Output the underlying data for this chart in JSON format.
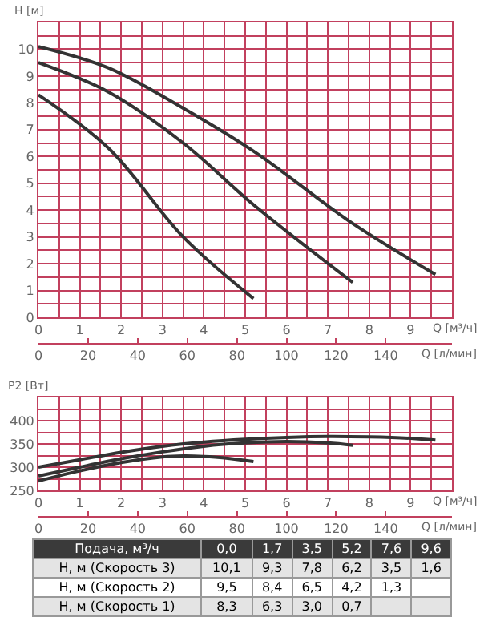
{
  "chart_data": [
    {
      "type": "line",
      "ylabel": "H [м]",
      "xlabel": "Q [м³/ч]",
      "x2label": "Q [л/мин]",
      "xlim": [
        0,
        10
      ],
      "xticks": [
        0,
        1,
        2,
        3,
        4,
        5,
        6,
        7,
        8,
        9
      ],
      "x2lim": [
        0,
        166.7
      ],
      "x2ticks": [
        0,
        20,
        40,
        60,
        80,
        100,
        120,
        140
      ],
      "ylim": [
        0,
        11
      ],
      "yticks": [
        0,
        1,
        2,
        3,
        4,
        5,
        6,
        7,
        8,
        9,
        10
      ],
      "grid": true,
      "line_style": "solid",
      "series": [
        {
          "color": "#333333",
          "x": [
            0,
            1.7,
            3.5,
            5.2,
            7.6,
            9.6
          ],
          "values": [
            10.1,
            9.3,
            7.8,
            6.2,
            3.5,
            1.6
          ]
        },
        {
          "color": "#333333",
          "x": [
            0,
            1.7,
            3.5,
            5.2,
            7.6
          ],
          "values": [
            9.5,
            8.4,
            6.5,
            4.2,
            1.3
          ]
        },
        {
          "color": "#333333",
          "x": [
            0,
            1.7,
            3.5,
            5.2
          ],
          "values": [
            8.3,
            6.3,
            3.0,
            0.7
          ]
        }
      ]
    },
    {
      "type": "line",
      "ylabel": "P2 [Вт]",
      "xlabel": "Q [м³/ч]",
      "x2label": "Q [л/мин]",
      "xlim": [
        0,
        10
      ],
      "xticks": [
        0,
        1,
        2,
        3,
        4,
        5,
        6,
        7,
        8,
        9
      ],
      "x2lim": [
        0,
        166.7
      ],
      "x2ticks": [
        0,
        20,
        40,
        60,
        80,
        100,
        120,
        140
      ],
      "ylim": [
        250,
        450
      ],
      "yticks": [
        250,
        300,
        350,
        400
      ],
      "grid": true,
      "line_style": "solid",
      "series": [
        {
          "color": "#333333",
          "x": [
            0,
            1,
            2,
            3,
            4,
            5,
            6,
            7,
            8,
            9,
            9.6
          ],
          "values": [
            300,
            316,
            332,
            345,
            354,
            360,
            364,
            366,
            365,
            362,
            358
          ]
        },
        {
          "color": "#333333",
          "x": [
            0,
            1,
            2,
            3,
            4,
            5,
            6,
            7,
            7.6
          ],
          "values": [
            281,
            300,
            318,
            333,
            345,
            352,
            355,
            352,
            347
          ]
        },
        {
          "color": "#333333",
          "x": [
            0,
            1,
            2,
            3,
            3.5,
            4,
            4.5,
            5.2
          ],
          "values": [
            270,
            292,
            310,
            322,
            324,
            323,
            320,
            312
          ]
        }
      ]
    },
    {
      "type": "other",
      "annotations": [
        "Подача, м³/ч"
      ],
      "categories": [
        "0,0",
        "1,7",
        "3,5",
        "5,2",
        "7,6",
        "9,6"
      ],
      "series": [
        {
          "name": "H, м (Скорость 3)",
          "values": [
            10.1,
            9.3,
            7.8,
            6.2,
            3.5,
            1.6
          ],
          "value_labels": [
            "10,1",
            "9,3",
            "7,8",
            "6,2",
            "3,5",
            "1,6"
          ]
        },
        {
          "name": "H, м (Скорость 2)",
          "values": [
            9.5,
            8.4,
            6.5,
            4.2,
            1.3,
            null
          ],
          "value_labels": [
            "9,5",
            "8,4",
            "6,5",
            "4,2",
            "1,3",
            null
          ]
        },
        {
          "name": "H, м (Скорость 1)",
          "values": [
            8.3,
            6.3,
            3.0,
            0.7,
            null,
            null
          ],
          "value_labels": [
            "8,3",
            "6,3",
            "3,0",
            "0,7",
            null,
            null
          ]
        }
      ]
    }
  ]
}
